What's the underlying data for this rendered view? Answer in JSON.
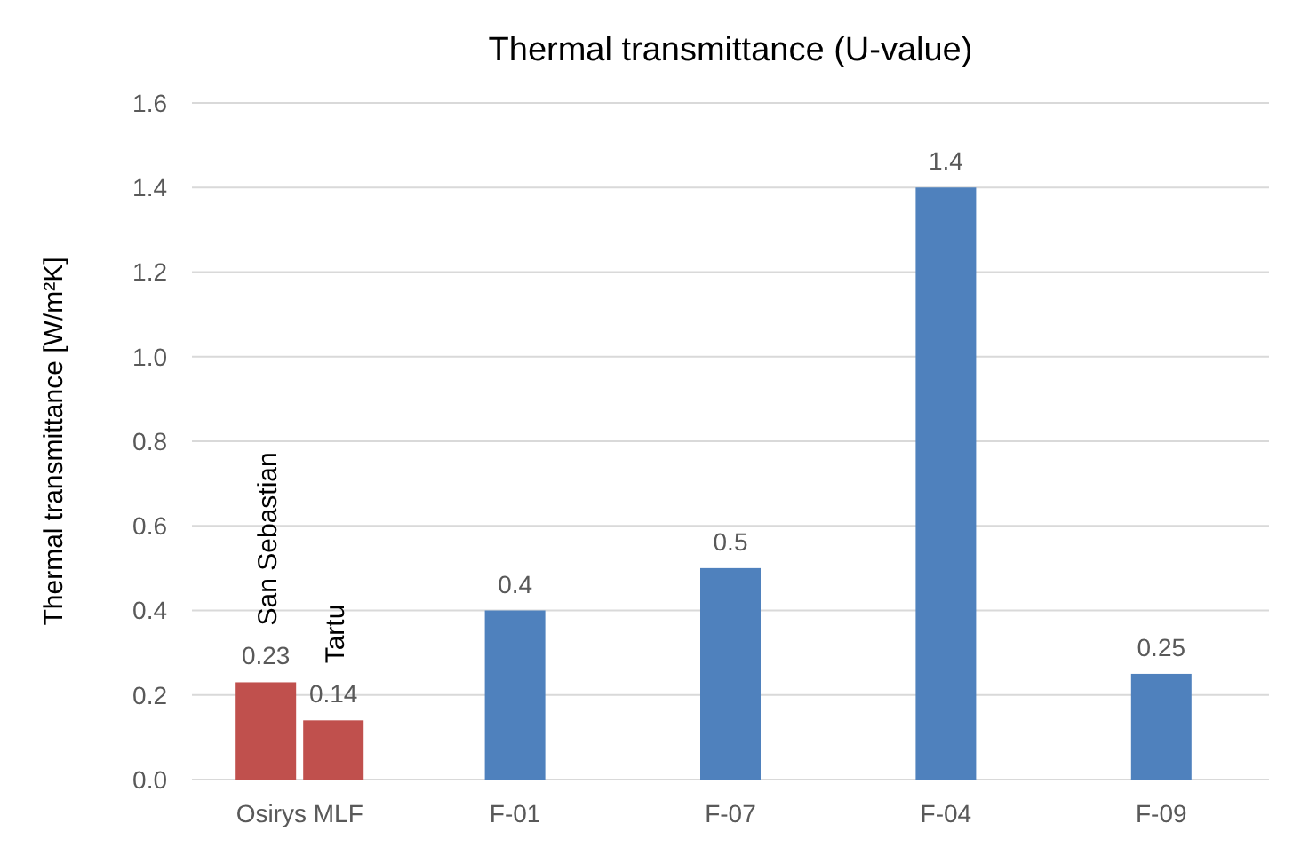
{
  "chart_data": {
    "type": "bar",
    "title": "Thermal transmittance (U-value)",
    "ylabel": "Thermal transmittance [W/m²K]",
    "categories": [
      "Osirys MLF",
      "F-01",
      "F-07",
      "F-04",
      "F-09"
    ],
    "series": [
      {
        "name": "San Sebastian",
        "color": "#c0504d",
        "values": [
          0.23,
          null,
          null,
          null,
          null
        ]
      },
      {
        "name": "Tartu",
        "color": "#c0504d",
        "values": [
          0.14,
          null,
          null,
          null,
          null
        ]
      },
      {
        "color": "#4f81bd",
        "values": [
          null,
          0.4,
          0.5,
          1.4,
          0.25
        ]
      }
    ],
    "ylim": [
      0,
      1.6
    ],
    "yticks": [
      {
        "value": 0,
        "label": "0.0"
      },
      {
        "value": 0.2,
        "label": "0.2"
      },
      {
        "value": 0.4,
        "label": "0.4"
      },
      {
        "value": 0.6,
        "label": "0.6"
      },
      {
        "value": 0.8,
        "label": "0.8"
      },
      {
        "value": 1,
        "label": "1.0"
      },
      {
        "value": 1.2,
        "label": "1.2"
      },
      {
        "value": 1.4,
        "label": "1.4"
      },
      {
        "value": 1.6,
        "label": "1.6"
      }
    ],
    "grid": "y",
    "data_labels": true
  }
}
